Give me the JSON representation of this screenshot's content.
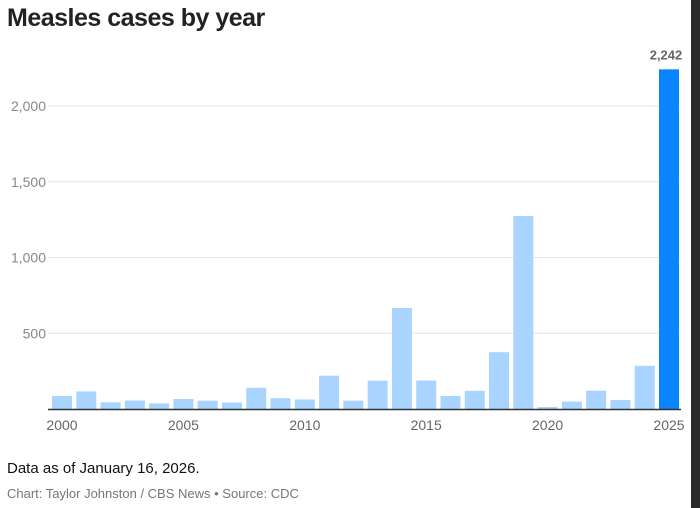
{
  "chart_data": {
    "type": "bar",
    "title": "Measles cases by year",
    "xlabel": "",
    "ylabel": "",
    "ylim": [
      0,
      2242
    ],
    "yticks": [
      500,
      1000,
      1500,
      2000
    ],
    "ytick_labels": [
      "500",
      "1,000",
      "1,500",
      "2,000"
    ],
    "xtick_labels": [
      "2000",
      "2005",
      "2010",
      "2015",
      "2020",
      "2025"
    ],
    "categories": [
      2000,
      2001,
      2002,
      2003,
      2004,
      2005,
      2006,
      2007,
      2008,
      2009,
      2010,
      2011,
      2012,
      2013,
      2014,
      2015,
      2016,
      2017,
      2018,
      2019,
      2020,
      2021,
      2022,
      2023,
      2024,
      2025
    ],
    "values": [
      86,
      116,
      44,
      56,
      37,
      66,
      55,
      43,
      140,
      71,
      63,
      220,
      55,
      187,
      667,
      188,
      86,
      120,
      375,
      1274,
      13,
      49,
      121,
      59,
      285,
      2242
    ],
    "highlight": {
      "year": 2025,
      "label": "2,242"
    },
    "grid": true,
    "colors": {
      "bar": "#a8d4ff",
      "highlight": "#0a84ff",
      "grid": "#e6e6e6",
      "axis": "#333333"
    }
  },
  "footer": {
    "note": "Data as of January 16, 2026.",
    "credit": "Chart: Taylor Johnston / CBS News • Source: CDC"
  }
}
